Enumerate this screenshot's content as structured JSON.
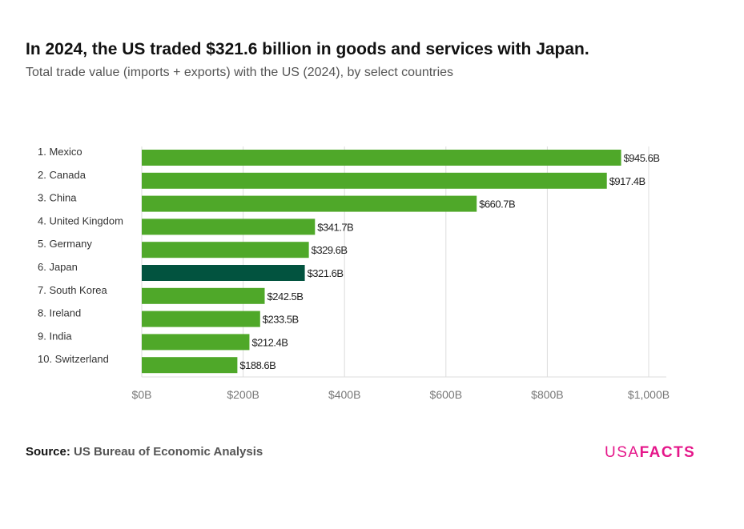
{
  "title": "In 2024, the US traded $321.6 billion in goods and services with Japan.",
  "subtitle": "Total trade value (imports + exports) with the US (2024), by select countries",
  "source_label": "Source:",
  "source_text": "US Bureau of Economic Analysis",
  "logo": {
    "part1": "USA",
    "part2": "FACTS"
  },
  "colors": {
    "bar": "#4fa829",
    "highlight": "#02533f",
    "grid": "#dddddd",
    "logo": "#e5178a"
  },
  "chart_data": {
    "type": "bar",
    "orientation": "horizontal",
    "categories": [
      "1. Mexico",
      "2. Canada",
      "3. China",
      "4. United Kingdom",
      "5. Germany",
      "6. Japan",
      "7. South Korea",
      "8. Ireland",
      "9. India",
      "10. Switzerland"
    ],
    "values": [
      945.6,
      917.4,
      660.7,
      341.7,
      329.6,
      321.6,
      242.5,
      233.5,
      212.4,
      188.6
    ],
    "data_labels": [
      "$945.6B",
      "$917.4B",
      "$660.7B",
      "$341.7B",
      "$329.6B",
      "$321.6B",
      "$242.5B",
      "$233.5B",
      "$212.4B",
      "$188.6B"
    ],
    "highlight": "6. Japan",
    "xlim": [
      0,
      1000
    ],
    "xticks": [
      0,
      200,
      400,
      600,
      800,
      1000
    ],
    "xtick_labels": [
      "$0B",
      "$200B",
      "$400B",
      "$600B",
      "$800B",
      "$1,000B"
    ],
    "grid": true,
    "unit": "billion USD"
  }
}
